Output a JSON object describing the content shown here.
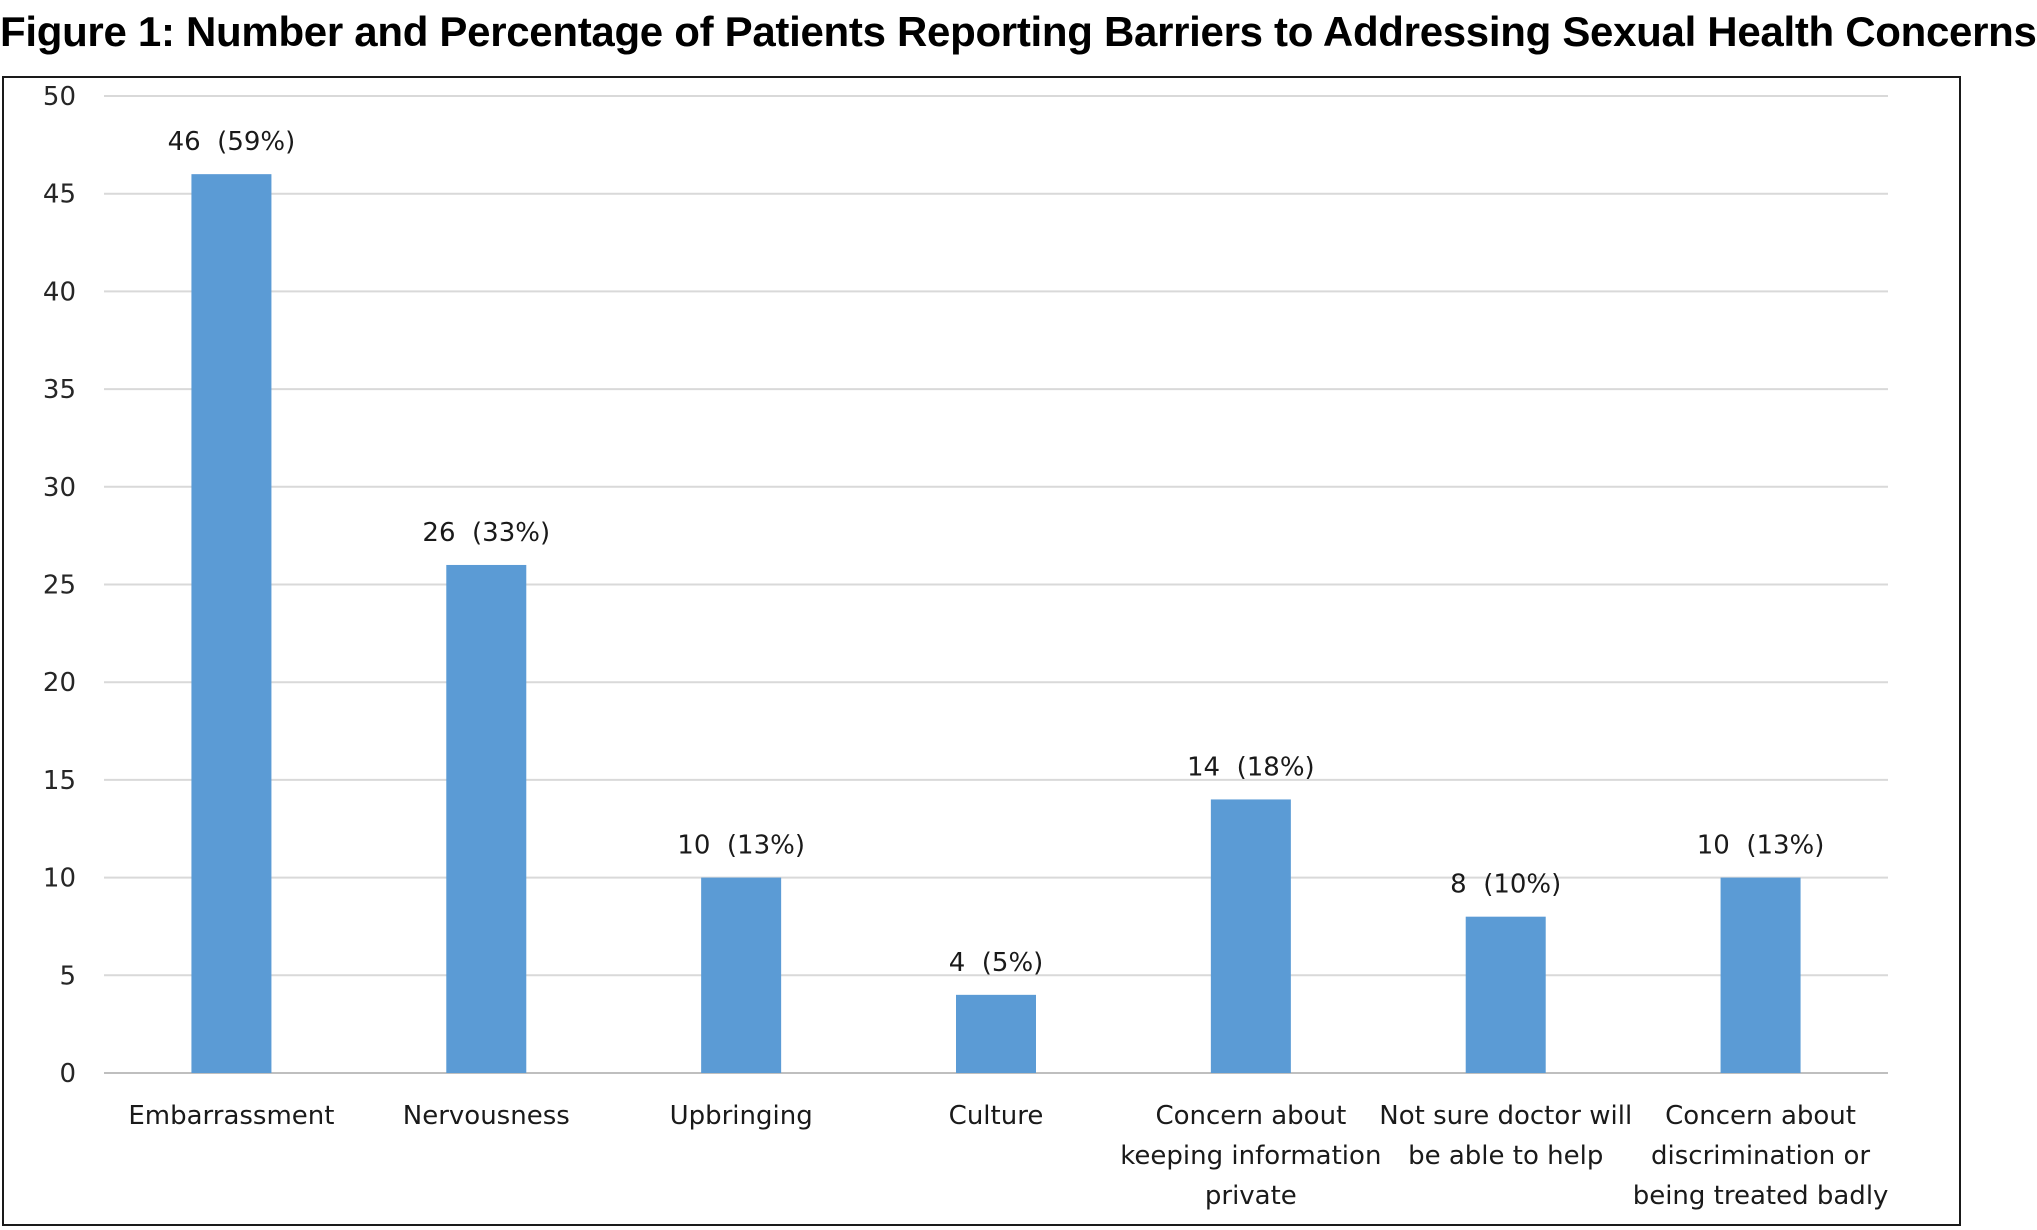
{
  "chart_data": {
    "type": "bar",
    "title": "Figure 1: Number and Percentage of Patients Reporting Barriers to Addressing Sexual Health Concerns",
    "xlabel": "",
    "ylabel": "",
    "ylim": [
      0,
      50
    ],
    "yticks": [
      0,
      5,
      10,
      15,
      20,
      25,
      30,
      35,
      40,
      45,
      50
    ],
    "grid": true,
    "legend": "none",
    "bar_color": "#5b9bd5",
    "categories": [
      [
        "Embarrassment"
      ],
      [
        "Nervousness"
      ],
      [
        "Upbringing"
      ],
      [
        "Culture"
      ],
      [
        "Concern about",
        "keeping information",
        "private"
      ],
      [
        "Not sure doctor will",
        "be able to help"
      ],
      [
        "Concern about",
        "discrimination or",
        "being treated badly"
      ]
    ],
    "values": [
      46,
      26,
      10,
      4,
      14,
      8,
      10
    ],
    "data_labels": [
      "46  (59%)",
      "26  (33%)",
      "10  (13%)",
      "4  (5%)",
      "14  (18%)",
      "8  (10%)",
      "10  (13%)"
    ]
  }
}
